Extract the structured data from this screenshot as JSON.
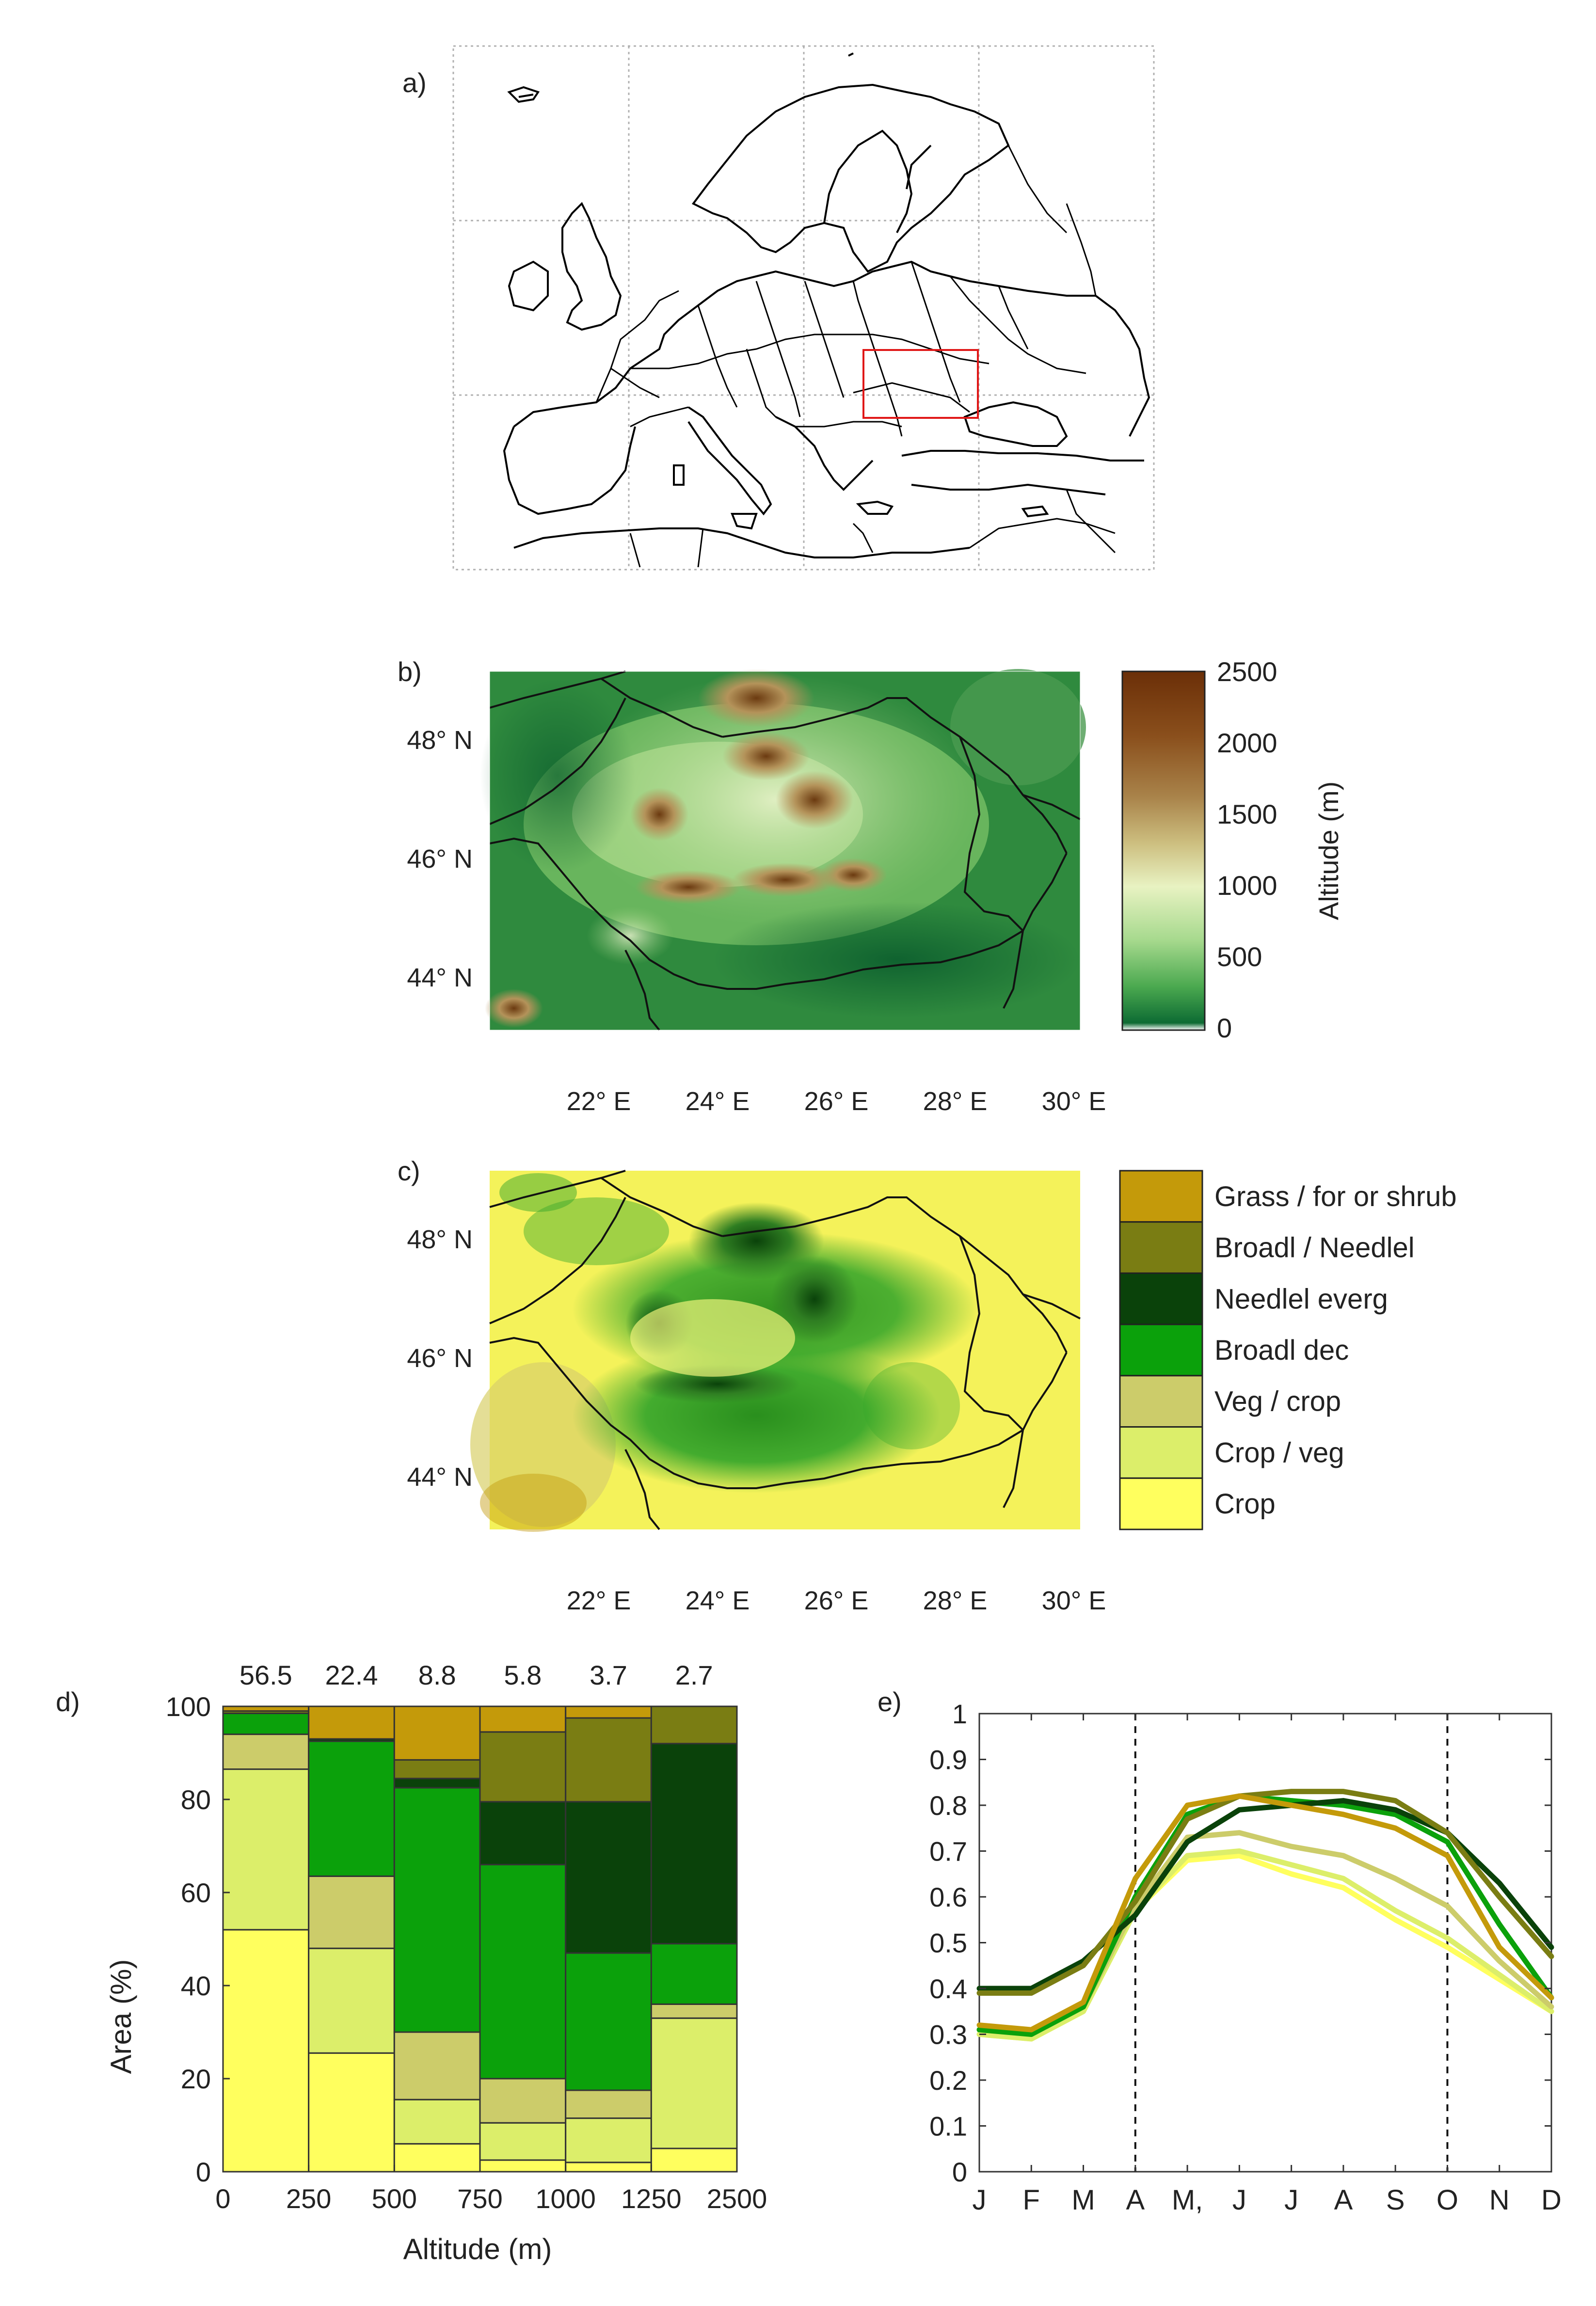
{
  "panels": {
    "a": {
      "label": "a)"
    },
    "b": {
      "label": "b)",
      "lat_labels": [
        "48° N",
        "46° N",
        "44° N"
      ],
      "lon_labels": [
        "22° E",
        "24° E",
        "26° E",
        "28° E",
        "30° E"
      ],
      "colorbar": {
        "title": "Altitude (m)",
        "ticks": [
          "2500",
          "2000",
          "1500",
          "1000",
          "500",
          "0"
        ],
        "colors": [
          "#6b2f08",
          "#8a4f1c",
          "#a9834a",
          "#cdbf80",
          "#e8f2c2",
          "#a6d98d",
          "#4aa84f",
          "#0d6b33"
        ]
      }
    },
    "c": {
      "label": "c)",
      "lat_labels": [
        "48° N",
        "46° N",
        "44° N"
      ],
      "lon_labels": [
        "22° E",
        "24° E",
        "26° E",
        "28° E",
        "30° E"
      ]
    },
    "d": {
      "label": "d)"
    },
    "e": {
      "label": "e)"
    }
  },
  "land_classes": [
    {
      "name": "Grass / for or shrub",
      "color": "#c49a0a"
    },
    {
      "name": "Broadl / Needlel",
      "color": "#7a7d13"
    },
    {
      "name": "Needlel everg",
      "color": "#0a420a"
    },
    {
      "name": "Broadl dec",
      "color": "#0ba10b"
    },
    {
      "name": "Veg / crop",
      "color": "#cccc6a"
    },
    {
      "name": "Crop / veg",
      "color": "#dcee6a"
    },
    {
      "name": "Crop",
      "color": "#ffff5e"
    }
  ],
  "chart_data": [
    {
      "id": "d",
      "type": "bar",
      "stacked": true,
      "xlabel": "Altitude (m)",
      "ylabel": "Area (%)",
      "ylim": [
        0,
        100
      ],
      "yticks": [
        0,
        20,
        40,
        60,
        80,
        100
      ],
      "xtick_labels": [
        "0",
        "250",
        "500",
        "750",
        "1000",
        "1250",
        "2500"
      ],
      "categories": [
        "0-250",
        "250-500",
        "500-750",
        "750-1000",
        "1000-1250",
        "1250-2500"
      ],
      "top_labels": [
        "56.5",
        "22.4",
        "8.8",
        "5.8",
        "3.7",
        "2.7"
      ],
      "series": [
        {
          "name": "Crop",
          "values": [
            52,
            25.5,
            6,
            2.5,
            2,
            5
          ]
        },
        {
          "name": "Crop / veg",
          "values": [
            34.5,
            22.5,
            9.5,
            8,
            9.5,
            28
          ]
        },
        {
          "name": "Veg / crop",
          "values": [
            7.5,
            15.5,
            14.5,
            9.5,
            6,
            3
          ]
        },
        {
          "name": "Broadl dec",
          "values": [
            4.5,
            29,
            52.5,
            46,
            29.5,
            13
          ]
        },
        {
          "name": "Needlel everg",
          "values": [
            0,
            0.5,
            2,
            13.5,
            32.5,
            43
          ]
        },
        {
          "name": "Broadl / Needlel",
          "values": [
            0.5,
            0,
            4,
            15,
            18,
            8
          ]
        },
        {
          "name": "Grass / for or shrub",
          "values": [
            1,
            7,
            11.5,
            5.5,
            2.5,
            0
          ]
        }
      ]
    },
    {
      "id": "e",
      "type": "line",
      "ylim": [
        0,
        1
      ],
      "yticks": [
        0,
        0.1,
        0.2,
        0.3,
        0.4,
        0.5,
        0.6,
        0.7,
        0.8,
        0.9,
        1
      ],
      "ytick_labels": [
        "0",
        "0.1",
        "0.2",
        "0.3",
        "0.4",
        "0.5",
        "0.6",
        "0.7",
        "0.8",
        "0.9",
        "1"
      ],
      "categories": [
        "J",
        "F",
        "M",
        "A",
        "M,",
        "J",
        "J",
        "A",
        "S",
        "O",
        "N",
        "D"
      ],
      "vlines_at": [
        "A",
        "O"
      ],
      "series": [
        {
          "name": "Crop",
          "values": [
            0.3,
            0.29,
            0.35,
            0.57,
            0.68,
            0.69,
            0.65,
            0.62,
            0.55,
            0.49,
            0.42,
            0.35
          ]
        },
        {
          "name": "Crop / veg",
          "values": [
            0.3,
            0.29,
            0.35,
            0.57,
            0.69,
            0.7,
            0.67,
            0.64,
            0.57,
            0.51,
            0.43,
            0.35
          ]
        },
        {
          "name": "Veg / crop",
          "values": [
            0.31,
            0.3,
            0.36,
            0.58,
            0.73,
            0.74,
            0.71,
            0.69,
            0.64,
            0.58,
            0.46,
            0.36
          ]
        },
        {
          "name": "Broadl dec",
          "values": [
            0.31,
            0.3,
            0.36,
            0.6,
            0.78,
            0.82,
            0.81,
            0.8,
            0.78,
            0.72,
            0.54,
            0.38
          ]
        },
        {
          "name": "Needlel everg",
          "values": [
            0.4,
            0.4,
            0.46,
            0.56,
            0.72,
            0.79,
            0.8,
            0.81,
            0.79,
            0.74,
            0.63,
            0.49
          ]
        },
        {
          "name": "Broadl / Needlel",
          "values": [
            0.39,
            0.39,
            0.45,
            0.59,
            0.77,
            0.82,
            0.83,
            0.83,
            0.81,
            0.74,
            0.6,
            0.47
          ]
        },
        {
          "name": "Grass / for or shrub",
          "values": [
            0.32,
            0.31,
            0.37,
            0.64,
            0.8,
            0.82,
            0.8,
            0.78,
            0.75,
            0.69,
            0.49,
            0.38
          ]
        }
      ]
    }
  ]
}
